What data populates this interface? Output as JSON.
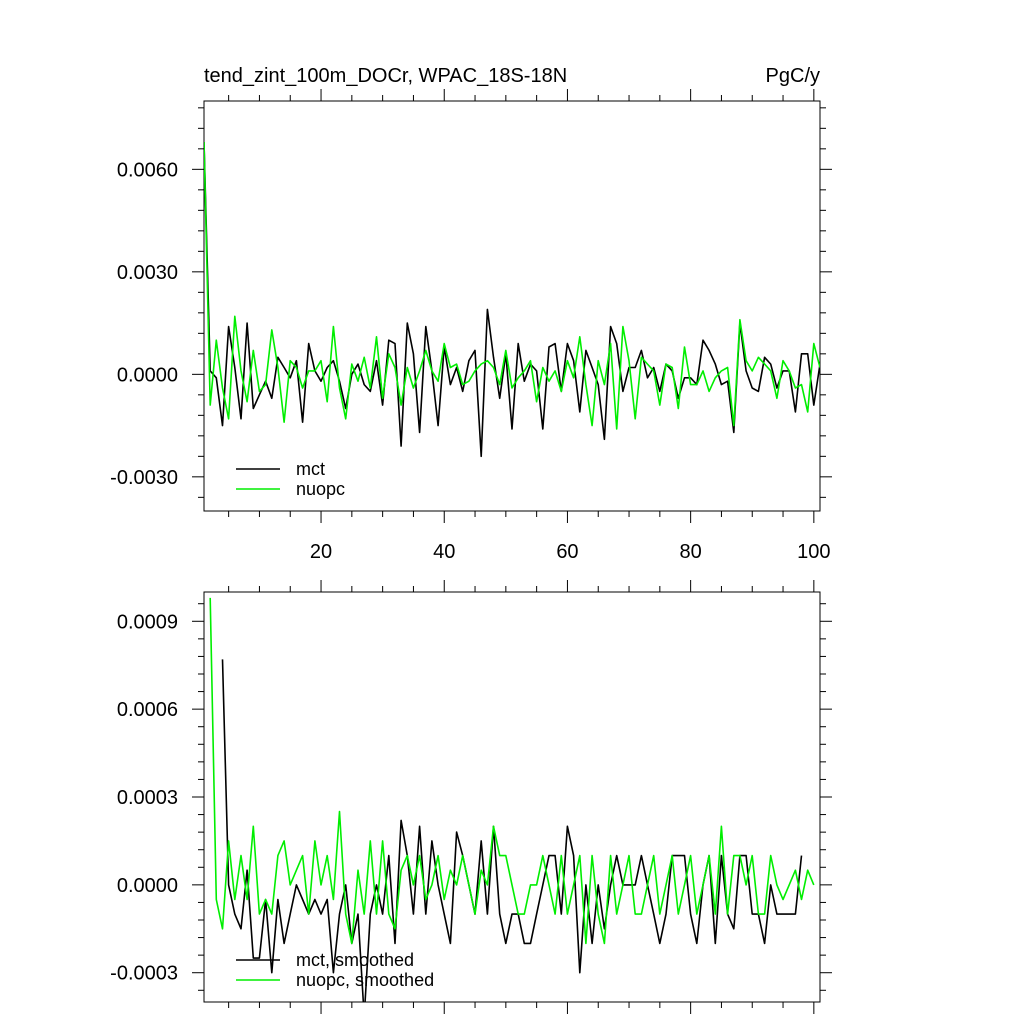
{
  "colors": {
    "mct": "#000000",
    "nuopc": "#00ee00",
    "frame": "#000000",
    "background": "#ffffff"
  },
  "chart_data": [
    {
      "type": "line",
      "title": "tend_zint_100m_DOCr, WPAC_18S-18N",
      "units": "PgC/y",
      "xlim": [
        1,
        101
      ],
      "ylim": [
        -0.004,
        0.008
      ],
      "yticks": [
        -0.003,
        0.0,
        0.003,
        0.006
      ],
      "ytick_labels": [
        "-0.0030",
        "0.0000",
        "0.0030",
        "0.0060"
      ],
      "xticks": [
        20,
        40,
        60,
        80,
        100
      ],
      "xtick_labels": [
        "20",
        "40",
        "60",
        "80",
        "100"
      ],
      "legend": "bottom-left",
      "x_start": 1,
      "series": [
        {
          "name": "mct",
          "color": "#000000",
          "values": [
            0.0068,
            0.0001,
            -0.0001,
            -0.0015,
            0.0014,
            0.0002,
            -0.0013,
            0.0015,
            -0.001,
            -0.0006,
            -0.0002,
            -0.0007,
            0.0005,
            0.0002,
            -0.0001,
            0.0004,
            -0.0014,
            0.0009,
            0.0001,
            -0.0002,
            0.0002,
            0.0004,
            -0.0002,
            -0.001,
            0.0,
            0.0003,
            -0.0003,
            -0.0005,
            0.0004,
            -0.0009,
            0.001,
            0.0009,
            -0.0021,
            0.0015,
            0.0006,
            -0.0017,
            0.0014,
            0.0001,
            -0.0015,
            0.0008,
            -0.0003,
            0.0002,
            -0.0005,
            0.0004,
            0.0007,
            -0.0024,
            0.0019,
            0.0005,
            -0.0007,
            0.0006,
            -0.0016,
            0.0009,
            -0.0002,
            0.0003,
            0.0001,
            -0.0016,
            0.0008,
            0.0009,
            -0.0005,
            0.0009,
            0.0004,
            -0.0011,
            0.0007,
            0.0002,
            -0.0003,
            -0.0019,
            0.0014,
            0.0009,
            -0.0005,
            0.0002,
            0.0002,
            0.0007,
            -0.0001,
            0.0002,
            -0.0005,
            0.0003,
            0.0001,
            -0.0007,
            -0.0001,
            -0.0001,
            -0.0003,
            0.001,
            0.0007,
            0.0003,
            -0.0003,
            -0.0002,
            -0.0017,
            0.0015,
            0.0001,
            -0.0004,
            -0.0005,
            0.0005,
            0.0003,
            -0.0004,
            0.0001,
            0.0001,
            -0.0011,
            0.0006,
            0.0006,
            -0.0009,
            0.0003
          ]
        },
        {
          "name": "nuopc",
          "color": "#00ee00",
          "values": [
            0.0068,
            -0.0009,
            0.001,
            -0.0004,
            -0.0013,
            0.0017,
            0.0001,
            -0.0008,
            0.0007,
            -0.0005,
            -0.0003,
            0.0013,
            0.0002,
            -0.0014,
            0.0004,
            0.0002,
            -0.0004,
            0.0001,
            0.0001,
            0.0004,
            -0.0008,
            0.0014,
            -0.0004,
            -0.0013,
            0.0003,
            -0.0002,
            0.0005,
            -0.0004,
            0.0011,
            -0.0007,
            0.0006,
            0.0002,
            -0.0009,
            0.0002,
            -0.0004,
            0.0001,
            0.0007,
            0.0001,
            -0.0002,
            0.0009,
            0.0002,
            0.0003,
            -0.0003,
            -0.0002,
            0.0001,
            0.0003,
            0.0004,
            0.0002,
            -0.0003,
            0.0007,
            -0.0004,
            -0.0001,
            0.0001,
            0.0004,
            -0.0008,
            0.0002,
            -0.0002,
            0.0001,
            -0.0005,
            0.0004,
            -0.0001,
            0.0011,
            -0.0003,
            -0.0015,
            0.0004,
            -0.0003,
            0.0009,
            -0.0016,
            0.0014,
            0.0004,
            -0.0013,
            0.0005,
            0.0003,
            0.0001,
            -0.0009,
            0.0003,
            0.0002,
            -0.001,
            0.0008,
            -0.0003,
            -0.0003,
            0.0001,
            -0.0005,
            -0.0001,
            0.0001,
            0.0002,
            -0.0015,
            0.0016,
            0.0004,
            0.0001,
            0.0005,
            0.0003,
            0.0001,
            -0.0007,
            0.0004,
            0.0001,
            -0.0004,
            -0.0003,
            -0.0011,
            0.0009,
            0.0002
          ]
        }
      ]
    },
    {
      "type": "line",
      "xlim": [
        1,
        101
      ],
      "ylim": [
        -0.0004,
        0.001
      ],
      "yticks": [
        -0.0003,
        0.0,
        0.0003,
        0.0006,
        0.0009
      ],
      "ytick_labels": [
        "-0.0003",
        "0.0000",
        "0.0003",
        "0.0006",
        "0.0009"
      ],
      "xticks": [
        20,
        40,
        60,
        80,
        100
      ],
      "legend": "bottom-left",
      "series": [
        {
          "name": "mct, smoothed",
          "color": "#000000",
          "x_start": 4,
          "values": [
            0.00077,
            0.0,
            -0.0001,
            -0.00015,
            5e-05,
            -0.00025,
            -0.00025,
            -5e-05,
            -0.0003,
            -5e-05,
            -0.0002,
            -0.0001,
            0.0,
            -5e-05,
            -0.0001,
            -5e-05,
            -0.0001,
            -5e-05,
            -0.0003,
            -0.0001,
            0.0,
            -0.0002,
            -0.0001,
            -0.00045,
            -0.0001,
            0.0,
            -0.0001,
            0.0001,
            -0.0002,
            0.00022,
            0.0001,
            -0.0001,
            0.0002,
            -0.0001,
            0.00015,
            0.0,
            -0.0001,
            -0.0002,
            0.00018,
            0.0001,
            0.0,
            -0.0001,
            0.00015,
            -0.0001,
            0.0002,
            -0.0001,
            -0.0002,
            -0.0001,
            -0.0001,
            -0.0002,
            -0.0002,
            -0.0001,
            0.0,
            0.0001,
            0.0001,
            -0.0001,
            0.0002,
            0.0001,
            -0.0003,
            0.0,
            -0.0002,
            0.0,
            -0.00015,
            0.0,
            0.0001,
            0.0,
            0.0,
            0.0,
            0.0001,
            0.0,
            -0.0001,
            -0.0002,
            -0.0001,
            0.0001,
            0.0001,
            0.0001,
            -0.0001,
            -0.0002,
            0.0,
            0.0001,
            -0.0002,
            0.0001,
            -0.0001,
            -0.00015,
            0.0001,
            0.0001,
            -0.0001,
            -0.0001,
            -0.0002,
            0.0,
            -0.0001,
            -0.0001,
            -0.0001,
            -0.0001,
            0.0001
          ]
        },
        {
          "name": "nuopc, smoothed",
          "color": "#00ee00",
          "x_start": 2,
          "values": [
            0.00098,
            -5e-05,
            -0.00015,
            0.00015,
            -5e-05,
            0.0001,
            -5e-05,
            0.0002,
            -0.0001,
            -5e-05,
            -0.0001,
            0.0001,
            0.00015,
            0.0,
            5e-05,
            0.0001,
            -0.0001,
            0.00015,
            0.0,
            0.0001,
            -5e-05,
            0.00025,
            -0.0001,
            -0.0002,
            5e-05,
            -0.0001,
            0.00015,
            -0.0001,
            0.00015,
            -0.0001,
            -0.00015,
            5e-05,
            0.0001,
            0.0,
            0.0001,
            -5e-05,
            0.0,
            0.0001,
            -5e-05,
            5e-05,
            0.0,
            0.0001,
            0.0,
            -0.0001,
            5e-05,
            0.0,
            0.0002,
            0.0001,
            0.0001,
            0.0,
            -0.0001,
            -0.0001,
            0.0,
            0.0,
            0.0001,
            0.0,
            -0.0001,
            0.0001,
            -0.0001,
            0.0,
            0.0001,
            -0.0002,
            0.0001,
            -0.0001,
            -0.0002,
            0.0001,
            -0.0001,
            0.0,
            0.0001,
            -0.0001,
            -0.0001,
            0.0,
            0.0001,
            -0.0001,
            0.0,
            0.0001,
            -0.0001,
            0.0,
            0.0001,
            -0.0001,
            0.0,
            0.0001,
            -0.0001,
            0.0002,
            -0.0001,
            0.0001,
            0.0001,
            0.0,
            0.0001,
            -0.0001,
            -0.0001,
            0.0001,
            0.0,
            -5e-05,
            0.0,
            5e-05,
            -5e-05,
            5e-05,
            0.0
          ]
        }
      ]
    }
  ]
}
